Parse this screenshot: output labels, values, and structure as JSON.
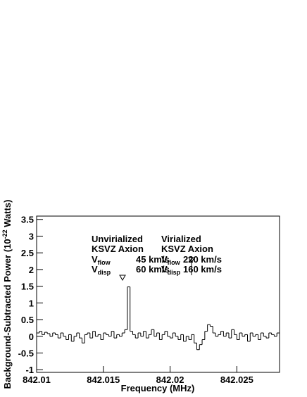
{
  "chart_data": {
    "type": "histogram",
    "xlabel": "Frequency (MHz)",
    "ylabel": {
      "text": "Background-Subtracted Power (10",
      "superscript": "-22",
      "suffix": " Watts)"
    },
    "xlim": [
      842.01,
      842.0282
    ],
    "ylim": [
      -1.08,
      3.6
    ],
    "xticks": [
      842.01,
      842.015,
      842.02,
      842.025
    ],
    "yticks": [
      -1,
      -0.5,
      0,
      0.5,
      1,
      1.5,
      2,
      2.5,
      3,
      3.5
    ],
    "color": "#000000",
    "bins": [
      842.01,
      842.0102,
      842.0104,
      842.0106,
      842.0108,
      842.011,
      842.0112,
      842.0114,
      842.0116,
      842.0118,
      842.012,
      842.0122,
      842.0124,
      842.0126,
      842.0128,
      842.013,
      842.0132,
      842.0134,
      842.0136,
      842.0138,
      842.014,
      842.0142,
      842.0144,
      842.0146,
      842.0148,
      842.015,
      842.0152,
      842.0154,
      842.0156,
      842.0158,
      842.016,
      842.0162,
      842.0164,
      842.0166,
      842.0168,
      842.017,
      842.0172,
      842.0174,
      842.0176,
      842.0178,
      842.018,
      842.0182,
      842.0184,
      842.0186,
      842.0188,
      842.019,
      842.0192,
      842.0194,
      842.0196,
      842.0198,
      842.02,
      842.0202,
      842.0204,
      842.0206,
      842.0208,
      842.021,
      842.0212,
      842.0214,
      842.0216,
      842.0218,
      842.022,
      842.0222,
      842.0224,
      842.0226,
      842.0228,
      842.023,
      842.0232,
      842.0234,
      842.0236,
      842.0238,
      842.024,
      842.0242,
      842.0244,
      842.0246,
      842.0248,
      842.025,
      842.0252,
      842.0254,
      842.0256,
      842.0258,
      842.026,
      842.0262,
      842.0264,
      842.0266,
      842.0268,
      842.027,
      842.0272,
      842.0274,
      842.0276,
      842.0278,
      842.028,
      842.0282
    ],
    "counts": [
      0.1,
      0.15,
      0.05,
      0.12,
      0.08,
      0.0,
      0.1,
      0.05,
      -0.05,
      0.1,
      0.0,
      -0.1,
      0.05,
      -0.15,
      0.0,
      0.1,
      -0.05,
      -0.2,
      0.05,
      0.1,
      -0.05,
      0.15,
      0.0,
      0.05,
      -0.1,
      0.1,
      0.05,
      0.0,
      0.15,
      -0.05,
      0.05,
      0.0,
      0.1,
      0.2,
      1.48,
      0.15,
      0.05,
      -0.05,
      0.1,
      0.0,
      0.15,
      -0.05,
      0.05,
      0.2,
      0.0,
      0.1,
      -0.1,
      0.05,
      0.15,
      0.0,
      -0.05,
      0.1,
      0.0,
      -0.1,
      0.05,
      -0.15,
      0.0,
      -0.1,
      0.05,
      -0.2,
      -0.4,
      -0.25,
      -0.1,
      0.15,
      0.35,
      0.3,
      0.1,
      0.0,
      0.05,
      0.15,
      0.0,
      0.1,
      -0.05,
      0.2,
      0.05,
      -0.1,
      0.1,
      0.0,
      0.05,
      -0.15,
      0.1,
      0.0,
      0.05,
      -0.1,
      0.1,
      0.0,
      -0.05,
      0.1,
      0.05,
      0.0,
      0.1
    ],
    "annotations": [
      {
        "lines": [
          "Unvirialized",
          "KSVZ Axion"
        ],
        "flow": {
          "symbol": "V",
          "subscript": "flow",
          "value": "45 km/s"
        },
        "disp": {
          "symbol": "V",
          "subscript": "disp",
          "value": "60 km/s"
        }
      },
      {
        "lines": [
          "Virialized",
          "KSVZ Axion"
        ],
        "flow": {
          "symbol": "V",
          "subscript": "flow",
          "value": "220 km/s"
        },
        "disp": {
          "symbol": "V",
          "subscript": "disp",
          "value": "160 km/s"
        }
      }
    ]
  }
}
